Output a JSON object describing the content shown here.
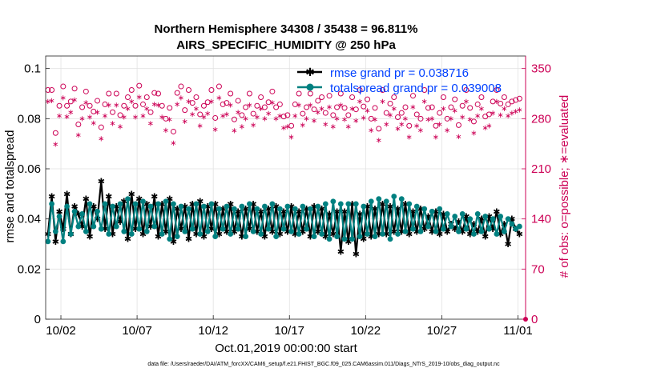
{
  "chart_data": {
    "type": "line",
    "title": "Northern Hemisphere 34308 / 35438 = 96.811%",
    "subtitle": "AIRS_SPECIFIC_HUMIDITY @ 250 hPa",
    "xlabel": "Oct.01,2019 00:00:00 start",
    "ylabel_left": "rmse and totalspread",
    "ylabel_right": "# of obs: o=possible; ∗=evaluated",
    "footnote": "data file: /Users/raeder/DAI/ATM_forcXX/CAM6_setup/f.e21.FHIST_BGC.f09_025.CAM6assim.011/Diags_NTrS_2019-10/obs_diag_output.nc",
    "xlim": [
      0,
      31.5
    ],
    "ylim_left": [
      0,
      0.105
    ],
    "ylim_right": [
      0,
      367.5
    ],
    "x_ticks": [
      1,
      6,
      11,
      16,
      21,
      26,
      31
    ],
    "x_tick_labels": [
      "10/02",
      "10/07",
      "10/12",
      "10/17",
      "10/22",
      "10/27",
      "11/01"
    ],
    "y_left_ticks": [
      0,
      0.02,
      0.04,
      0.06,
      0.08,
      0.1
    ],
    "y_left_tick_labels": [
      "0",
      "0.02",
      "0.04",
      "0.06",
      "0.08",
      "0.1"
    ],
    "y_right_ticks": [
      0,
      70,
      140,
      210,
      280,
      350
    ],
    "y_right_tick_labels": [
      "0",
      "70",
      "140",
      "210",
      "280",
      "350"
    ],
    "series": [
      {
        "name": "rmse grand pr = 0.038716",
        "axis": "left",
        "color": "#000000",
        "marker": "star",
        "values": [
          0.034,
          0.049,
          0.031,
          0.043,
          0.036,
          0.05,
          0.034,
          0.045,
          0.042,
          0.037,
          0.048,
          0.033,
          0.045,
          0.04,
          0.055,
          0.036,
          0.049,
          0.034,
          0.045,
          0.039,
          0.047,
          0.032,
          0.05,
          0.036,
          0.048,
          0.034,
          0.046,
          0.037,
          0.049,
          0.033,
          0.046,
          0.035,
          0.048,
          0.031,
          0.044,
          0.036,
          0.045,
          0.032,
          0.046,
          0.034,
          0.047,
          0.033,
          0.045,
          0.036,
          0.046,
          0.034,
          0.044,
          0.035,
          0.046,
          0.035,
          0.043,
          0.033,
          0.044,
          0.036,
          0.046,
          0.035,
          0.043,
          0.033,
          0.044,
          0.035,
          0.045,
          0.034,
          0.043,
          0.035,
          0.045,
          0.034,
          0.043,
          0.035,
          0.044,
          0.033,
          0.045,
          0.035,
          0.044,
          0.033,
          0.042,
          0.034,
          0.043,
          0.027,
          0.043,
          0.031,
          0.046,
          0.026,
          0.042,
          0.032,
          0.045,
          0.033,
          0.044,
          0.034,
          0.046,
          0.034,
          0.045,
          0.035,
          0.044,
          0.035,
          0.046,
          0.034,
          0.043,
          0.035,
          0.044,
          0.036,
          0.041,
          0.035,
          0.043,
          0.034,
          0.042,
          0.035,
          0.038,
          0.036,
          0.039,
          0.035,
          0.041,
          0.034,
          0.038,
          0.035,
          0.04,
          0.033,
          0.041,
          0.036,
          0.043,
          0.034,
          0.038,
          0.03,
          0.04,
          0.036,
          0.034
        ]
      },
      {
        "name": "totalspread grand pr = 0.039008",
        "axis": "left",
        "color": "#008080",
        "marker": "circle",
        "values": [
          0.031,
          0.046,
          0.035,
          0.041,
          0.031,
          0.045,
          0.034,
          0.043,
          0.037,
          0.042,
          0.035,
          0.046,
          0.037,
          0.043,
          0.036,
          0.046,
          0.034,
          0.045,
          0.037,
          0.046,
          0.035,
          0.048,
          0.034,
          0.046,
          0.036,
          0.047,
          0.035,
          0.045,
          0.037,
          0.046,
          0.034,
          0.047,
          0.032,
          0.046,
          0.033,
          0.045,
          0.035,
          0.044,
          0.036,
          0.046,
          0.034,
          0.045,
          0.035,
          0.046,
          0.033,
          0.044,
          0.036,
          0.045,
          0.034,
          0.044,
          0.036,
          0.045,
          0.033,
          0.046,
          0.035,
          0.044,
          0.034,
          0.045,
          0.036,
          0.046,
          0.033,
          0.044,
          0.036,
          0.045,
          0.035,
          0.044,
          0.034,
          0.045,
          0.036,
          0.044,
          0.033,
          0.045,
          0.034,
          0.046,
          0.032,
          0.047,
          0.033,
          0.046,
          0.032,
          0.046,
          0.032,
          0.046,
          0.033,
          0.045,
          0.034,
          0.047,
          0.033,
          0.048,
          0.034,
          0.047,
          0.032,
          0.049,
          0.034,
          0.048,
          0.035,
          0.046,
          0.036,
          0.045,
          0.035,
          0.044,
          0.037,
          0.043,
          0.035,
          0.044,
          0.036,
          0.042,
          0.037,
          0.041,
          0.035,
          0.042,
          0.036,
          0.04,
          0.034,
          0.042,
          0.035,
          0.041,
          0.036,
          0.04,
          0.034,
          0.041,
          0.035,
          0.04,
          0.038,
          0.036,
          0.037
        ]
      },
      {
        "name": "possible",
        "axis": "right",
        "color": "#cc0055",
        "marker": "open-circle",
        "values": [
          320,
          320,
          260,
          298,
          325,
          298,
          304,
          322,
          272,
          296,
          318,
          298,
          290,
          305,
          268,
          300,
          315,
          289,
          315,
          285,
          298,
          310,
          320,
          298,
          326,
          300,
          310,
          289,
          316,
          315,
          298,
          280,
          295,
          262,
          316,
          325,
          292,
          320,
          302,
          310,
          286,
          298,
          303,
          320,
          281,
          325,
          300,
          302,
          315,
          279,
          305,
          285,
          296,
          315,
          287,
          298,
          310,
          296,
          303,
          318,
          296,
          300,
          283,
          285,
          270,
          300,
          315,
          287,
          296,
          315,
          293,
          305,
          310,
          288,
          312,
          285,
          296,
          315,
          295,
          285,
          310,
          293,
          320,
          297,
          307,
          280,
          295,
          266,
          320,
          288,
          301,
          310,
          282,
          288,
          296,
          270,
          312,
          286,
          280,
          320,
          295,
          296,
          270,
          288,
          310,
          280,
          296,
          307,
          271,
          298,
          320,
          295,
          276,
          300,
          310,
          283,
          286,
          304,
          320,
          301,
          310,
          300,
          304,
          306,
          308
        ]
      },
      {
        "name": "evaluated",
        "axis": "right",
        "color": "#cc0055",
        "marker": "asterisk",
        "values": [
          305,
          306,
          245,
          285,
          310,
          284,
          290,
          307,
          258,
          281,
          303,
          283,
          275,
          290,
          253,
          285,
          300,
          274,
          300,
          270,
          283,
          295,
          305,
          283,
          311,
          285,
          295,
          274,
          301,
          300,
          283,
          265,
          280,
          247,
          301,
          310,
          277,
          305,
          287,
          295,
          271,
          283,
          288,
          305,
          266,
          310,
          285,
          287,
          300,
          264,
          290,
          270,
          281,
          300,
          272,
          283,
          295,
          281,
          288,
          303,
          281,
          285,
          268,
          270,
          255,
          285,
          300,
          272,
          281,
          300,
          278,
          290,
          295,
          273,
          297,
          270,
          281,
          300,
          280,
          270,
          295,
          278,
          305,
          282,
          292,
          265,
          280,
          251,
          305,
          273,
          286,
          295,
          267,
          273,
          281,
          255,
          297,
          271,
          265,
          305,
          280,
          281,
          255,
          273,
          295,
          265,
          281,
          292,
          256,
          283,
          305,
          280,
          261,
          285,
          295,
          268,
          271,
          289,
          305,
          286,
          295,
          285,
          289,
          291,
          293
        ]
      }
    ]
  }
}
